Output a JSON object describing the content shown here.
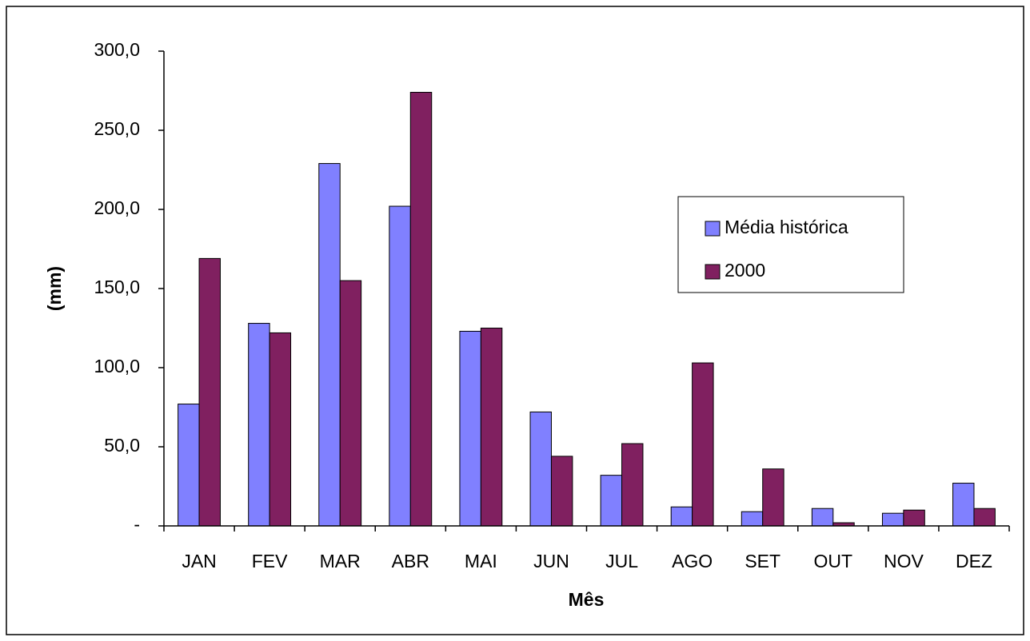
{
  "chart_data": {
    "type": "bar",
    "y_label": "(mm)",
    "x_label": "Mês",
    "categories": [
      "JAN",
      "FEV",
      "MAR",
      "ABR",
      "MAI",
      "JUN",
      "JUL",
      "AGO",
      "SET",
      "OUT",
      "NOV",
      "DEZ"
    ],
    "series": [
      {
        "name": "Média histórica",
        "color": "#8080ff",
        "values": [
          77,
          128,
          229,
          202,
          123,
          72,
          32,
          12,
          9,
          11,
          8,
          27
        ]
      },
      {
        "name": "2000",
        "color": "#802060",
        "values": [
          169,
          122,
          155,
          274,
          125,
          44,
          52,
          103,
          36,
          2,
          10,
          11
        ]
      }
    ],
    "ylim": [
      0,
      300
    ],
    "yticks": [
      {
        "value": 0,
        "label": "-"
      },
      {
        "value": 50,
        "label": "50,0"
      },
      {
        "value": 100,
        "label": "100,0"
      },
      {
        "value": 150,
        "label": "150,0"
      },
      {
        "value": 200,
        "label": "200,0"
      },
      {
        "value": 250,
        "label": "250,0"
      },
      {
        "value": 300,
        "label": "300,0"
      }
    ],
    "grid": false,
    "legend": "right"
  }
}
